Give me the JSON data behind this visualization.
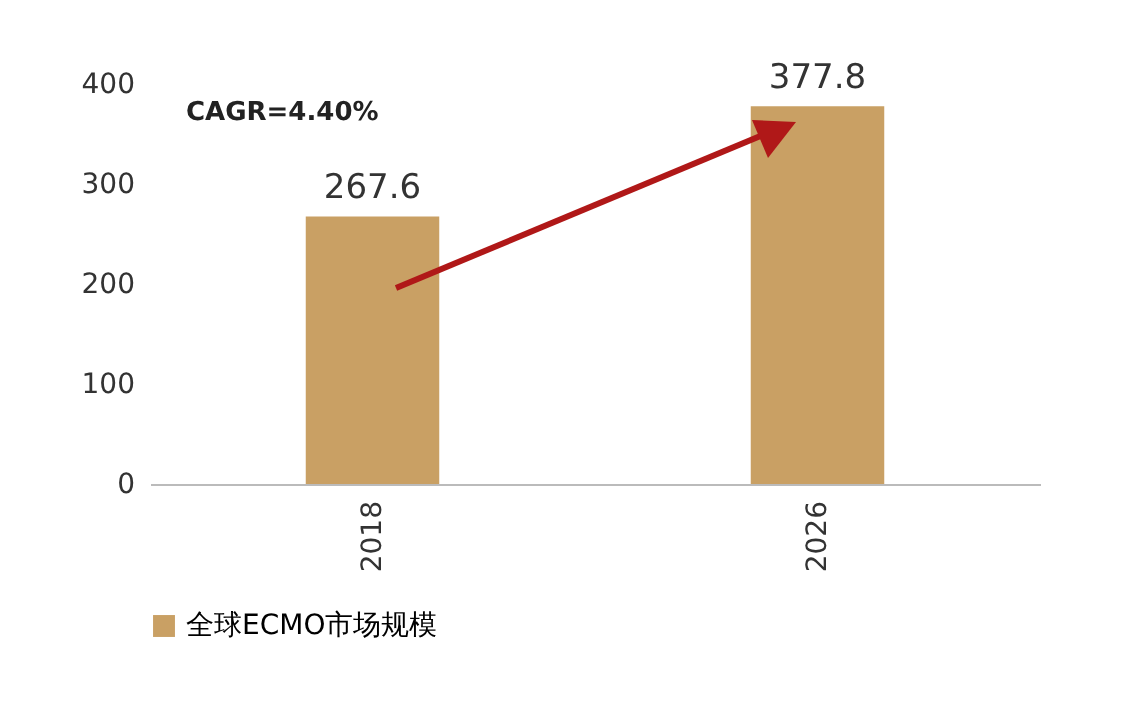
{
  "chart_data": {
    "type": "bar",
    "categories": [
      "2018",
      "2026"
    ],
    "series": [
      {
        "name": "全球ECMO市场规模",
        "color": "#c9a064",
        "values": [
          267.6,
          377.8
        ]
      }
    ],
    "ylim": [
      0,
      400
    ],
    "yticks": [
      0,
      100,
      200,
      300,
      400
    ],
    "data_labels": true,
    "grid": false,
    "legend": "bottom",
    "annotations": [
      "CAGR=4.40%"
    ]
  }
}
